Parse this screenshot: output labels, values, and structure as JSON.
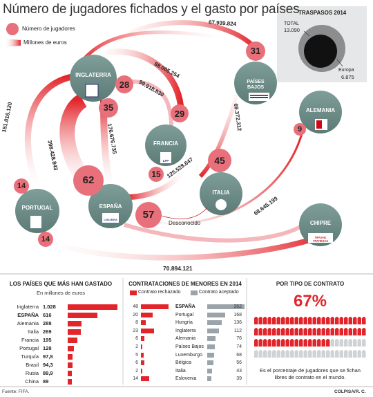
{
  "title": "Número de jugadores fichados y el gasto por países",
  "legend": {
    "players": "Número de jugadores",
    "money": "Millones de euros"
  },
  "traspasos": {
    "heading": "TRASPASOS 2014",
    "total_label": "TOTAL",
    "total_value": "13.090",
    "europa_label": "Europa",
    "europa_value": "6.875"
  },
  "countries": {
    "inglaterra": "INGLATERRA",
    "paises_bajos": "PAÍSES BAJOS",
    "francia": "FRANCIA",
    "alemania": "ALEMANIA",
    "espana": "ESPAÑA",
    "portugal": "PORTUGAL",
    "italia": "ITALIA",
    "chipre": "CHIPRE"
  },
  "player_counts": {
    "paises_bajos": "31",
    "inglaterra_francia": "28",
    "francia_inglaterra": "29",
    "espana_inglaterra": "35",
    "espana_italia": "45",
    "espana_alemania": "9",
    "espana_self": "62",
    "espana_francia": "15",
    "desconocido": "57",
    "espana_portugal_top": "14",
    "espana_portugal_bottom": "14"
  },
  "amounts": {
    "eng_pb": "67.939.824",
    "eng_fr": "88.005.254",
    "fr_eng": "99.918.830",
    "portugal_eng": "151.016.120",
    "esp_eng_a": "398.428.843",
    "esp_eng_b": "176.676.735",
    "pb_esp": "69.372.312",
    "esp_fr": "125.528.647",
    "esp_chipre": "68.645.199",
    "esp_portugal": "70.894.121"
  },
  "desconocido_label": "Desconocido",
  "logos": {
    "francia_lfp": "LFP",
    "espana_liga": "LIGA BBVA",
    "chipre_sponsor": "ΠΡΑΞΗΣ ΤΡΑΠΕΖΑΣ"
  },
  "panel_spend": {
    "heading": "LOS PAÍSES QUE MÁS HAN GASTADO",
    "subheading": "En millones de euros",
    "rows": [
      {
        "name": "Inglaterra",
        "value": "1.028",
        "num": 1028
      },
      {
        "name": "ESPAÑA",
        "value": "616",
        "num": 616
      },
      {
        "name": "Alemania",
        "value": "288",
        "num": 288
      },
      {
        "name": "Italia",
        "value": "269",
        "num": 269
      },
      {
        "name": "Francia",
        "value": "195",
        "num": 195
      },
      {
        "name": "Portugal",
        "value": "128",
        "num": 128
      },
      {
        "name": "Turquía",
        "value": "97,8",
        "num": 97.8
      },
      {
        "name": "Brasil",
        "value": "94,3",
        "num": 94.3
      },
      {
        "name": "Rusia",
        "value": "89,9",
        "num": 89.9
      },
      {
        "name": "China",
        "value": "89",
        "num": 89
      }
    ]
  },
  "panel_minors": {
    "heading": "CONTRATACIONES DE MENORES EN 2014",
    "legend_rejected": "Contrato rechazado",
    "legend_accepted": "Contrato aceptado",
    "rows": [
      {
        "rejected": "48",
        "r": 48,
        "name": "ESPAÑA",
        "accepted": "352",
        "a": 352
      },
      {
        "rejected": "20",
        "r": 20,
        "name": "Portugal",
        "accepted": "168",
        "a": 168
      },
      {
        "rejected": "8",
        "r": 8,
        "name": "Hungría",
        "accepted": "136",
        "a": 136
      },
      {
        "rejected": "23",
        "r": 23,
        "name": "Inglaterra",
        "accepted": "112",
        "a": 112
      },
      {
        "rejected": "6",
        "r": 6,
        "name": "Alemania",
        "accepted": "76",
        "a": 76
      },
      {
        "rejected": "2",
        "r": 2,
        "name": "Países Bajos",
        "accepted": "74",
        "a": 74
      },
      {
        "rejected": "5",
        "r": 5,
        "name": "Luxemburgo",
        "accepted": "68",
        "a": 68
      },
      {
        "rejected": "6",
        "r": 6,
        "name": "Bélgica",
        "accepted": "56",
        "a": 56
      },
      {
        "rejected": "2",
        "r": 2,
        "name": "Italia",
        "accepted": "43",
        "a": 43
      },
      {
        "rejected": "14",
        "r": 14,
        "name": "Eslovenia",
        "accepted": "39",
        "a": 39
      }
    ]
  },
  "panel_contract": {
    "heading": "POR TIPO DE CONTRATO",
    "percent": "67%",
    "percent_num": 67,
    "caption": "Es el porcentaje de jugadores que se fichan libres de contrato en el mundo."
  },
  "footer": {
    "source": "Fuente: FIFA.",
    "credit": "COLPISA/R. C."
  },
  "colors": {
    "red": "#e2252b",
    "pink": "#e8707a",
    "node": "#6d8d89",
    "grey_bar": "#9aa4aa"
  }
}
